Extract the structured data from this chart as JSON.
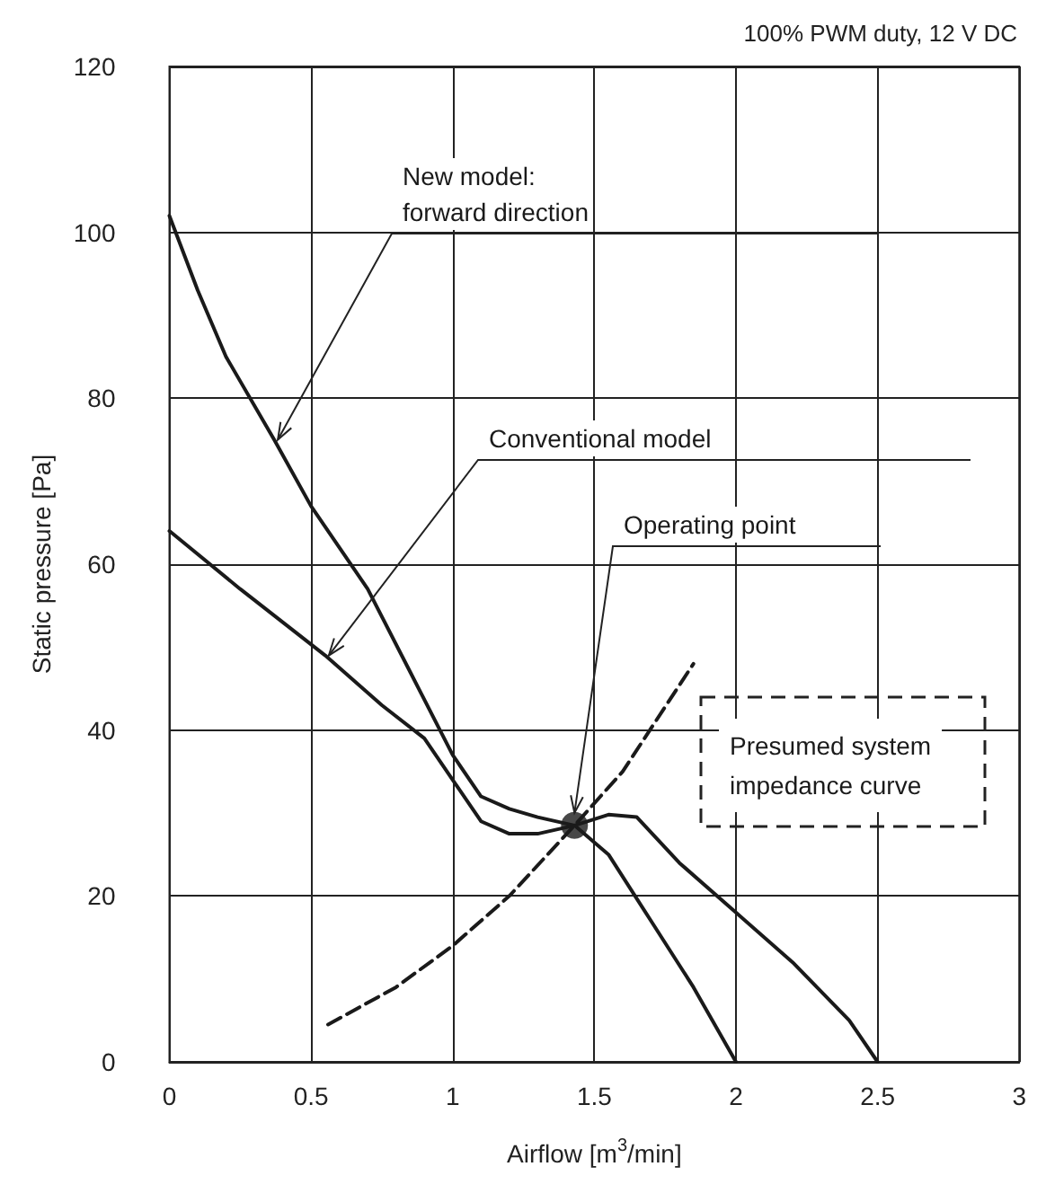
{
  "chart_data": {
    "type": "line",
    "xlabel": "Airflow [m$^{3}$/min]",
    "ylabel": "Static pressure [Pa]",
    "xlim": [
      0,
      3
    ],
    "xticks": [
      0,
      0.5,
      1,
      1.5,
      2,
      2.5,
      3
    ],
    "ylim": [
      0,
      120
    ],
    "yticks": [
      0,
      20,
      40,
      60,
      80,
      100,
      120
    ],
    "grid": true,
    "legend": false,
    "marker": "none",
    "annotations": [
      "100% PWM duty, 12 V DC"
    ],
    "series": [
      {
        "name": "New model: forward direction",
        "color": "#1a1a1a",
        "line_style": "solid",
        "x": [
          0,
          0.1,
          0.2,
          0.37,
          0.5,
          0.7,
          0.85,
          1.0,
          1.1,
          1.2,
          1.3,
          1.43,
          1.55,
          1.7,
          1.85,
          2.0
        ],
        "values": [
          102,
          93,
          85,
          75,
          67,
          57,
          47,
          37,
          32,
          30.5,
          29.5,
          28.5,
          25,
          17,
          9,
          0
        ]
      },
      {
        "name": "Conventional model",
        "color": "#1a1a1a",
        "line_style": "solid",
        "x": [
          0,
          0.25,
          0.55,
          0.75,
          0.9,
          1.0,
          1.1,
          1.2,
          1.3,
          1.43,
          1.55,
          1.65,
          1.8,
          2.0,
          2.2,
          2.4,
          2.5
        ],
        "values": [
          64,
          57,
          49,
          43,
          39,
          34,
          29,
          27.5,
          27.5,
          28.5,
          29.8,
          29.5,
          24,
          18,
          12,
          5,
          0
        ]
      },
      {
        "name": "Presumed system impedance curve",
        "color": "#1a1a1a",
        "line_style": "dashed",
        "x": [
          0.56,
          0.8,
          1.0,
          1.2,
          1.43,
          1.6,
          1.85
        ],
        "values": [
          4.5,
          9,
          14,
          20,
          28.5,
          35,
          48
        ]
      },
      {
        "name": "Operating point",
        "type": "scatter",
        "marker": "circle",
        "color": "#1a1a1a",
        "x": [
          1.43
        ],
        "values": [
          28.5
        ]
      }
    ]
  }
}
